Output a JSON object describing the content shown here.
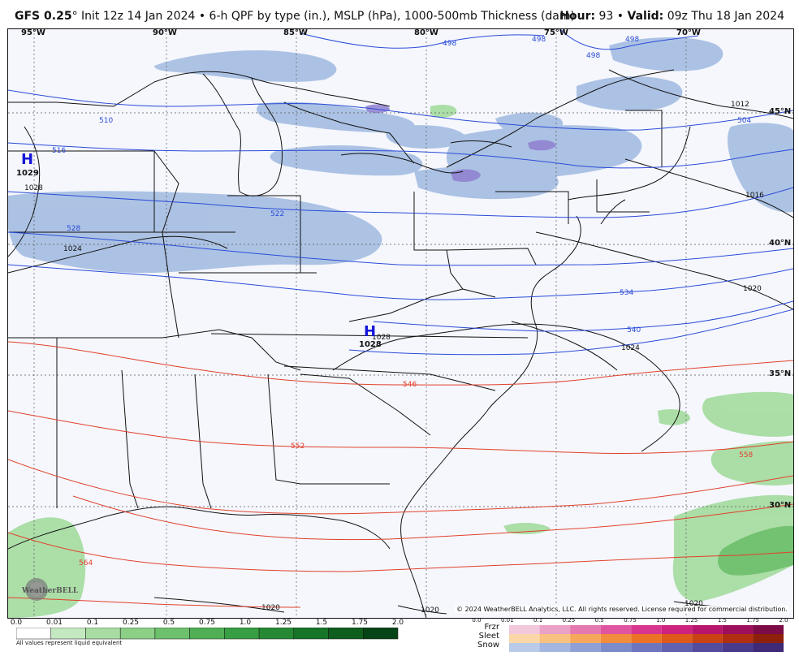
{
  "header": {
    "model": "GFS 0.25",
    "degree": "°",
    "description": " Init 12z 14 Jan 2024 • 6-h QPF by type (in.), MSLP (hPa), 1000-500mb Thickness (dam)",
    "hour_label": "Hour:",
    "hour_value": " 93 • ",
    "valid_label": "Valid:",
    "valid_value": " 09z Thu 18 Jan 2024"
  },
  "map": {
    "longitudes": [
      "95°W",
      "90°W",
      "85°W",
      "80°W",
      "75°W",
      "70°W"
    ],
    "latitudes": [
      "45°N",
      "40°N",
      "35°N",
      "30°N"
    ],
    "highs": [
      {
        "letter": "H",
        "value": "1029"
      },
      {
        "letter": "H",
        "value": "1028"
      }
    ],
    "isobars": [
      "1028",
      "1024",
      "1012",
      "1016",
      "1020",
      "1024",
      "1020",
      "1020",
      "1020",
      "1028"
    ],
    "thickness_blue": [
      "498",
      "498",
      "498",
      "498",
      "504",
      "510",
      "516",
      "522",
      "528",
      "534",
      "540"
    ],
    "thickness_red": [
      "546",
      "552",
      "558",
      "564"
    ],
    "colors": {
      "blue_lines": "#2a4bd7",
      "red_lines": "#e2402a",
      "rain": "#9fd89a",
      "snow": "#a9c0e3",
      "mix": "#8e7fd0"
    },
    "watermark": "WeatherBELL",
    "copyright": "© 2024 WeatherBELL Analytics, LLC. All rights reserved. License required for commercial distribution."
  },
  "legend_rain": {
    "ticks": [
      "0.0",
      "0.01",
      "0.1",
      "0.25",
      "0.5",
      "0.75",
      "1.0",
      "1.25",
      "1.5",
      "1.75",
      "2.0"
    ],
    "colors": [
      "#ffffff",
      "#c4e8c0",
      "#a8dca3",
      "#8ccf87",
      "#6dc06c",
      "#50af55",
      "#389e43",
      "#268a35",
      "#177528",
      "#0e5f1e",
      "#054416"
    ],
    "note": "All values represent liquid equivalent"
  },
  "legend_ptype": {
    "ticks": [
      "0.0",
      "0.01",
      "0.1",
      "0.25",
      "0.5",
      "0.75",
      "1.0",
      "1.25",
      "1.5",
      "1.75",
      "2.0"
    ],
    "labels": [
      "Frzr",
      "Sleet",
      "Snow"
    ],
    "frzr": [
      "#f3c7dc",
      "#eaa1c6",
      "#e57ab1",
      "#df559f",
      "#d8358f",
      "#cd237e",
      "#b7166c",
      "#9c0f5b",
      "#7c0b47"
    ],
    "sleet": [
      "#fbd7a8",
      "#f8c17f",
      "#f5a85b",
      "#f28d3d",
      "#ec7225",
      "#dd5a1a",
      "#c94314",
      "#b02f10",
      "#8f210c"
    ],
    "snow": [
      "#b9cbe8",
      "#a3b6e0",
      "#8ea0d5",
      "#7c8bc9",
      "#6d76bd",
      "#6061af",
      "#544c9f",
      "#4a3a8c",
      "#3e2a77"
    ]
  }
}
